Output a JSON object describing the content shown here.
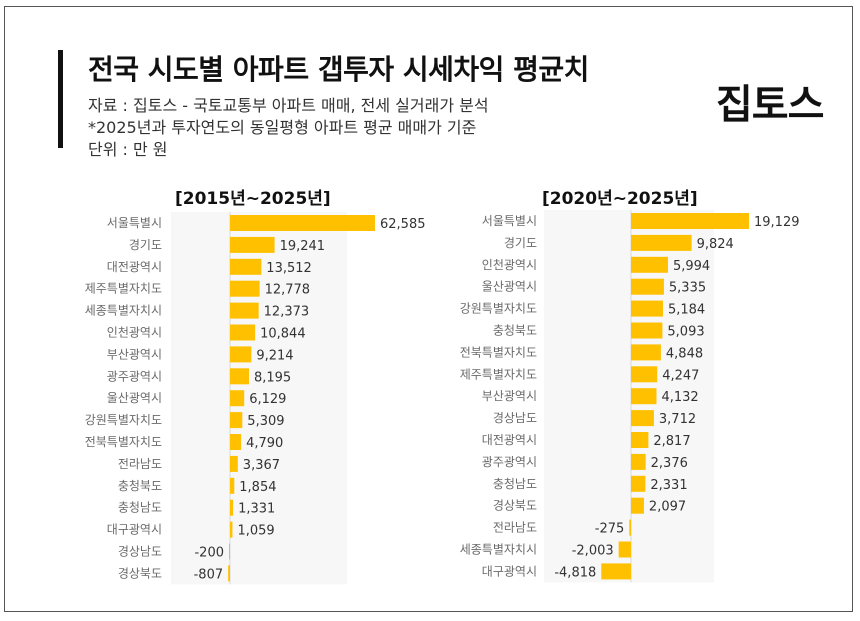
{
  "header": {
    "title": "전국 시도별 아파트 갭투자 시세차익 평균치",
    "source": "자료 : 집토스 - 국토교통부 아파트 매매, 전세 실거래가 분석",
    "note": "*2025년과 투자연도의 동일평형 아파트 평균 매매가 기준",
    "unit": "단위 : 만 원",
    "logo": "집토스"
  },
  "colors": {
    "bar": "#FFC000",
    "axis": "#d9d9d9"
  },
  "chart_data": [
    {
      "type": "bar",
      "orientation": "horizontal",
      "title": "[2015년~2025년]",
      "categories": [
        "서울특별시",
        "경기도",
        "대전광역시",
        "제주특별자치도",
        "세종특별자치시",
        "인천광역시",
        "부산광역시",
        "광주광역시",
        "울산광역시",
        "강원특별자치도",
        "전북특별자치도",
        "전라남도",
        "충청북도",
        "충청남도",
        "대구광역시",
        "경상남도",
        "경상북도"
      ],
      "values": [
        62585,
        19241,
        13512,
        12778,
        12373,
        10844,
        9214,
        8195,
        6129,
        5309,
        4790,
        3367,
        1854,
        1331,
        1059,
        -200,
        -807
      ],
      "value_labels": [
        "62,585",
        "19,241",
        "13,512",
        "12,778",
        "12,373",
        "10,844",
        "9,214",
        "8,195",
        "6,129",
        "5,309",
        "4,790",
        "3,367",
        "1,854",
        "1,331",
        "1,059",
        "-200",
        "-807"
      ],
      "grid": false,
      "legend": "none"
    },
    {
      "type": "bar",
      "orientation": "horizontal",
      "title": "[2020년~2025년]",
      "categories": [
        "서울특별시",
        "경기도",
        "인천광역시",
        "울산광역시",
        "강원특별자치도",
        "충청북도",
        "전북특별자치도",
        "제주특별자치도",
        "부산광역시",
        "경상남도",
        "대전광역시",
        "광주광역시",
        "충청남도",
        "경상북도",
        "전라남도",
        "세종특별자치시",
        "대구광역시"
      ],
      "values": [
        19129,
        9824,
        5994,
        5335,
        5184,
        5093,
        4848,
        4247,
        4132,
        3712,
        2817,
        2376,
        2331,
        2097,
        -275,
        -2003,
        -4818
      ],
      "value_labels": [
        "19,129",
        "9,824",
        "5,994",
        "5,335",
        "5,184",
        "5,093",
        "4,848",
        "4,247",
        "4,132",
        "3,712",
        "2,817",
        "2,376",
        "2,331",
        "2,097",
        "-275",
        "-2,003",
        "-4,818"
      ],
      "grid": false,
      "legend": "none"
    }
  ]
}
